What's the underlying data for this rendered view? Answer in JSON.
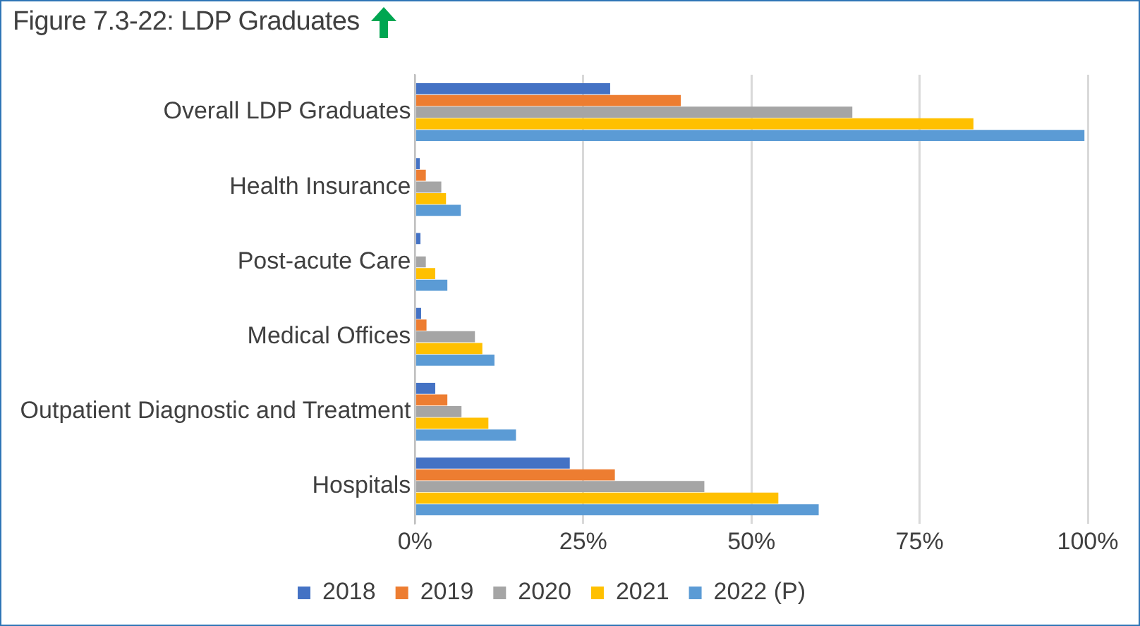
{
  "chart_data": {
    "type": "bar",
    "orientation": "horizontal",
    "title": "Figure 7.3-22: LDP Graduates",
    "categories": [
      "Overall LDP Graduates",
      "Health Insurance",
      "Post-acute Care",
      "Medical Offices",
      "Outpatient Diagnostic and Treatment",
      "Hospitals"
    ],
    "series": [
      {
        "name": "2018",
        "color": "#4472c4",
        "values": [
          29,
          0.7,
          0.8,
          0.9,
          3,
          23
        ]
      },
      {
        "name": "2019",
        "color": "#ed7d31",
        "values": [
          39.5,
          1.6,
          null,
          1.7,
          4.8,
          29.7
        ]
      },
      {
        "name": "2020",
        "color": "#a5a5a5",
        "values": [
          65,
          3.9,
          1.6,
          8.9,
          6.9,
          43
        ]
      },
      {
        "name": "2021",
        "color": "#ffc000",
        "values": [
          83,
          4.6,
          3,
          10,
          10.9,
          54
        ]
      },
      {
        "name": "2022 (P)",
        "color": "#5b9bd5",
        "values": [
          99.5,
          6.8,
          4.8,
          11.8,
          15,
          60
        ]
      }
    ],
    "xlim": [
      0,
      100
    ],
    "xticks": [
      {
        "value": 0,
        "label": "0%"
      },
      {
        "value": 25,
        "label": "25%"
      },
      {
        "value": 50,
        "label": "50%"
      },
      {
        "value": 75,
        "label": "75%"
      },
      {
        "value": 100,
        "label": "100%"
      }
    ],
    "grid": "x",
    "legend": "bottom"
  }
}
